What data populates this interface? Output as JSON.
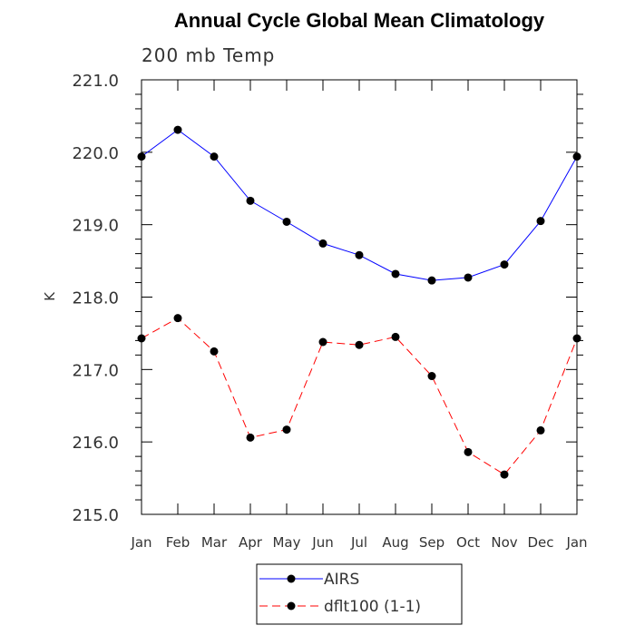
{
  "chart_data": {
    "type": "line",
    "title": "Annual Cycle Global Mean Climatology",
    "subtitle": "200 mb Temp",
    "xlabel": "",
    "ylabel": "K",
    "categories": [
      "Jan",
      "Feb",
      "Mar",
      "Apr",
      "May",
      "Jun",
      "Jul",
      "Aug",
      "Sep",
      "Oct",
      "Nov",
      "Dec",
      "Jan"
    ],
    "ylim": [
      215.0,
      221.0
    ],
    "yticks": [
      "215.0",
      "216.0",
      "217.0",
      "218.0",
      "219.0",
      "220.0",
      "221.0"
    ],
    "grid": false,
    "legend_position": "bottom-center",
    "series": [
      {
        "name": "AIRS",
        "color": "#0000ff",
        "dash": "solid",
        "marker": "filled-circle",
        "values": [
          219.94,
          220.31,
          219.94,
          219.33,
          219.04,
          218.74,
          218.58,
          218.32,
          218.23,
          218.27,
          218.45,
          219.05,
          219.94
        ]
      },
      {
        "name": "dflt100 (1-1)",
        "color": "#ff0000",
        "dash": "dashed",
        "marker": "filled-circle",
        "values": [
          217.43,
          217.71,
          217.25,
          216.06,
          216.17,
          217.38,
          217.34,
          217.45,
          216.91,
          215.86,
          215.55,
          216.16,
          217.43
        ]
      }
    ]
  }
}
